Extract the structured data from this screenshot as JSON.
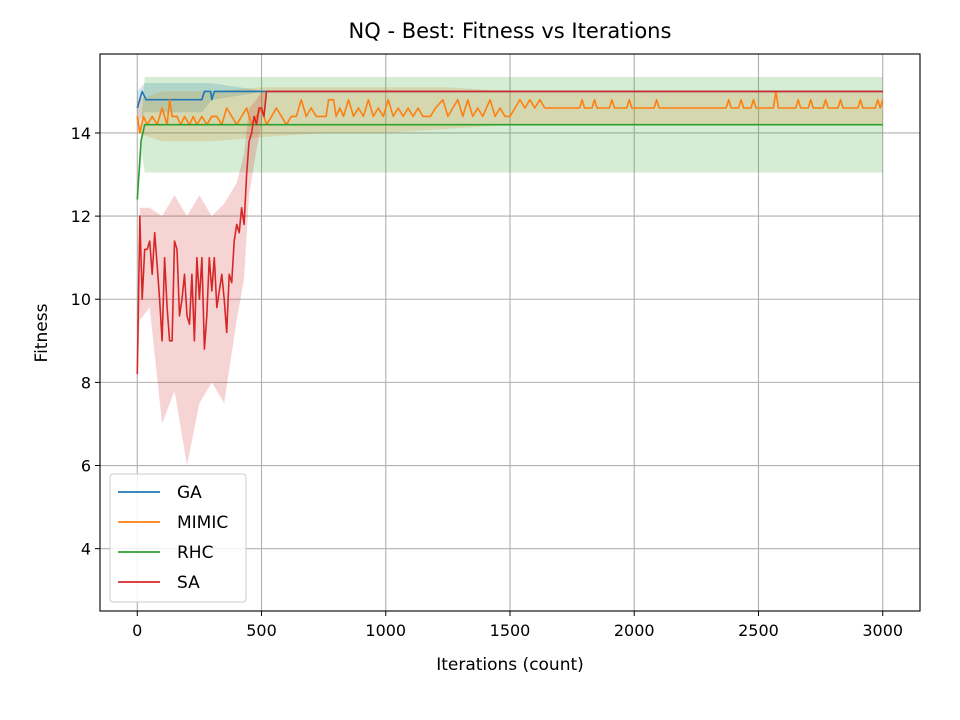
{
  "chart_data": {
    "type": "line",
    "title": "NQ - Best: Fitness vs Iterations",
    "xlabel": "Iterations (count)",
    "ylabel": "Fitness",
    "xlim": [
      -150,
      3150
    ],
    "ylim": [
      2.5,
      15.9
    ],
    "xticks": [
      0,
      500,
      1000,
      1500,
      2000,
      2500,
      3000
    ],
    "yticks": [
      4,
      6,
      8,
      10,
      12,
      14
    ],
    "grid": true,
    "legend_position": "lower-left",
    "series": [
      {
        "name": "GA",
        "color": "#1f77b4",
        "points": [
          [
            0,
            14.6
          ],
          [
            20,
            15.0
          ],
          [
            35,
            14.8
          ],
          [
            260,
            14.8
          ],
          [
            270,
            15.0
          ],
          [
            295,
            15.0
          ],
          [
            300,
            14.8
          ],
          [
            310,
            15.0
          ],
          [
            3000,
            15.0
          ]
        ],
        "band": [
          [
            0,
            14.2,
            15.0
          ],
          [
            30,
            14.5,
            15.2
          ],
          [
            260,
            14.5,
            15.2
          ],
          [
            300,
            14.8,
            15.2
          ],
          [
            520,
            15.0,
            15.0
          ],
          [
            3000,
            15.0,
            15.0
          ]
        ]
      },
      {
        "name": "MIMIC",
        "color": "#ff7f0e",
        "points": [
          [
            0,
            14.4
          ],
          [
            10,
            14.0
          ],
          [
            25,
            14.4
          ],
          [
            40,
            14.2
          ],
          [
            60,
            14.4
          ],
          [
            80,
            14.2
          ],
          [
            100,
            14.6
          ],
          [
            110,
            14.4
          ],
          [
            120,
            14.2
          ],
          [
            130,
            14.8
          ],
          [
            140,
            14.4
          ],
          [
            160,
            14.4
          ],
          [
            175,
            14.2
          ],
          [
            190,
            14.4
          ],
          [
            210,
            14.2
          ],
          [
            225,
            14.4
          ],
          [
            240,
            14.2
          ],
          [
            260,
            14.4
          ],
          [
            280,
            14.2
          ],
          [
            300,
            14.4
          ],
          [
            320,
            14.4
          ],
          [
            340,
            14.2
          ],
          [
            360,
            14.6
          ],
          [
            380,
            14.4
          ],
          [
            400,
            14.2
          ],
          [
            420,
            14.4
          ],
          [
            440,
            14.6
          ],
          [
            460,
            14.2
          ],
          [
            480,
            14.4
          ],
          [
            500,
            14.6
          ],
          [
            520,
            14.2
          ],
          [
            540,
            14.4
          ],
          [
            560,
            14.6
          ],
          [
            580,
            14.4
          ],
          [
            600,
            14.2
          ],
          [
            620,
            14.4
          ],
          [
            640,
            14.4
          ],
          [
            660,
            14.8
          ],
          [
            680,
            14.4
          ],
          [
            700,
            14.6
          ],
          [
            720,
            14.4
          ],
          [
            760,
            14.4
          ],
          [
            770,
            14.8
          ],
          [
            790,
            14.8
          ],
          [
            800,
            14.4
          ],
          [
            815,
            14.6
          ],
          [
            830,
            14.4
          ],
          [
            850,
            14.8
          ],
          [
            870,
            14.4
          ],
          [
            890,
            14.6
          ],
          [
            910,
            14.4
          ],
          [
            930,
            14.8
          ],
          [
            950,
            14.4
          ],
          [
            970,
            14.6
          ],
          [
            990,
            14.4
          ],
          [
            1010,
            14.8
          ],
          [
            1030,
            14.4
          ],
          [
            1050,
            14.6
          ],
          [
            1070,
            14.4
          ],
          [
            1090,
            14.6
          ],
          [
            1110,
            14.4
          ],
          [
            1130,
            14.6
          ],
          [
            1150,
            14.4
          ],
          [
            1180,
            14.4
          ],
          [
            1200,
            14.6
          ],
          [
            1230,
            14.8
          ],
          [
            1250,
            14.4
          ],
          [
            1270,
            14.6
          ],
          [
            1290,
            14.8
          ],
          [
            1310,
            14.4
          ],
          [
            1330,
            14.8
          ],
          [
            1350,
            14.4
          ],
          [
            1370,
            14.6
          ],
          [
            1390,
            14.4
          ],
          [
            1420,
            14.8
          ],
          [
            1440,
            14.4
          ],
          [
            1460,
            14.6
          ],
          [
            1480,
            14.4
          ],
          [
            1500,
            14.4
          ],
          [
            1520,
            14.6
          ],
          [
            1540,
            14.8
          ],
          [
            1560,
            14.6
          ],
          [
            1580,
            14.8
          ],
          [
            1600,
            14.6
          ],
          [
            1620,
            14.8
          ],
          [
            1640,
            14.6
          ],
          [
            1780,
            14.6
          ],
          [
            1790,
            14.8
          ],
          [
            1800,
            14.6
          ],
          [
            1830,
            14.6
          ],
          [
            1840,
            14.8
          ],
          [
            1850,
            14.6
          ],
          [
            1900,
            14.6
          ],
          [
            1910,
            14.8
          ],
          [
            1920,
            14.6
          ],
          [
            1970,
            14.6
          ],
          [
            1980,
            14.8
          ],
          [
            1990,
            14.6
          ],
          [
            2080,
            14.6
          ],
          [
            2090,
            14.8
          ],
          [
            2100,
            14.6
          ],
          [
            2370,
            14.6
          ],
          [
            2380,
            14.8
          ],
          [
            2390,
            14.6
          ],
          [
            2420,
            14.6
          ],
          [
            2430,
            14.8
          ],
          [
            2440,
            14.6
          ],
          [
            2470,
            14.6
          ],
          [
            2480,
            14.8
          ],
          [
            2490,
            14.6
          ],
          [
            2560,
            14.6
          ],
          [
            2570,
            15.0
          ],
          [
            2580,
            14.6
          ],
          [
            2650,
            14.6
          ],
          [
            2660,
            14.8
          ],
          [
            2670,
            14.6
          ],
          [
            2700,
            14.6
          ],
          [
            2710,
            14.8
          ],
          [
            2720,
            14.6
          ],
          [
            2760,
            14.6
          ],
          [
            2770,
            14.8
          ],
          [
            2780,
            14.6
          ],
          [
            2820,
            14.6
          ],
          [
            2830,
            14.8
          ],
          [
            2840,
            14.6
          ],
          [
            2900,
            14.6
          ],
          [
            2910,
            14.8
          ],
          [
            2920,
            14.6
          ],
          [
            2970,
            14.6
          ],
          [
            2980,
            14.8
          ],
          [
            2990,
            14.6
          ],
          [
            3000,
            14.8
          ]
        ],
        "band": [
          [
            0,
            14.0,
            14.8
          ],
          [
            100,
            13.8,
            15.0
          ],
          [
            300,
            13.8,
            15.0
          ],
          [
            500,
            13.9,
            15.1
          ],
          [
            750,
            14.0,
            15.1
          ],
          [
            1000,
            14.0,
            15.1
          ],
          [
            1250,
            14.1,
            15.1
          ],
          [
            1500,
            14.2,
            15.0
          ],
          [
            1510,
            14.2,
            15.0
          ],
          [
            3000,
            14.2,
            15.0
          ]
        ]
      },
      {
        "name": "RHC",
        "color": "#2ca02c",
        "points": [
          [
            0,
            12.4
          ],
          [
            15,
            13.8
          ],
          [
            30,
            14.2
          ],
          [
            3000,
            14.2
          ]
        ],
        "band": [
          [
            0,
            12.4,
            12.4
          ],
          [
            20,
            13.5,
            14.5
          ],
          [
            30,
            13.05,
            15.35
          ],
          [
            3000,
            13.05,
            15.35
          ]
        ]
      },
      {
        "name": "SA",
        "color": "#d62728",
        "points": [
          [
            0,
            8.2
          ],
          [
            10,
            12.0
          ],
          [
            20,
            10.0
          ],
          [
            30,
            11.2
          ],
          [
            40,
            11.2
          ],
          [
            50,
            11.4
          ],
          [
            60,
            10.6
          ],
          [
            70,
            11.6
          ],
          [
            80,
            10.8
          ],
          [
            90,
            10.0
          ],
          [
            100,
            9.0
          ],
          [
            110,
            11.0
          ],
          [
            120,
            9.8
          ],
          [
            130,
            9.0
          ],
          [
            140,
            9.0
          ],
          [
            150,
            11.4
          ],
          [
            160,
            11.2
          ],
          [
            170,
            9.6
          ],
          [
            180,
            10.0
          ],
          [
            190,
            10.6
          ],
          [
            200,
            9.6
          ],
          [
            210,
            9.4
          ],
          [
            220,
            10.6
          ],
          [
            230,
            9.0
          ],
          [
            240,
            11.0
          ],
          [
            250,
            10.0
          ],
          [
            260,
            11.0
          ],
          [
            270,
            8.8
          ],
          [
            280,
            9.6
          ],
          [
            290,
            11.0
          ],
          [
            300,
            10.2
          ],
          [
            310,
            11.0
          ],
          [
            320,
            9.8
          ],
          [
            330,
            10.2
          ],
          [
            340,
            10.6
          ],
          [
            350,
            10.0
          ],
          [
            360,
            9.2
          ],
          [
            370,
            10.6
          ],
          [
            380,
            10.4
          ],
          [
            390,
            11.4
          ],
          [
            400,
            11.8
          ],
          [
            410,
            11.6
          ],
          [
            420,
            12.2
          ],
          [
            430,
            11.8
          ],
          [
            440,
            13.0
          ],
          [
            450,
            13.8
          ],
          [
            460,
            14.0
          ],
          [
            470,
            14.4
          ],
          [
            480,
            14.2
          ],
          [
            490,
            14.6
          ],
          [
            500,
            14.6
          ],
          [
            510,
            14.4
          ],
          [
            520,
            15.0
          ],
          [
            3000,
            15.0
          ]
        ],
        "band": [
          [
            0,
            8.2,
            8.2
          ],
          [
            10,
            9.5,
            12.2
          ],
          [
            50,
            9.8,
            12.2
          ],
          [
            100,
            7.0,
            12.0
          ],
          [
            150,
            7.8,
            12.5
          ],
          [
            200,
            6.0,
            12.0
          ],
          [
            250,
            7.5,
            12.5
          ],
          [
            300,
            8.0,
            12.0
          ],
          [
            350,
            7.5,
            12.3
          ],
          [
            400,
            9.5,
            12.8
          ],
          [
            430,
            10.5,
            13.5
          ],
          [
            450,
            12.5,
            14.6
          ],
          [
            480,
            13.6,
            14.8
          ],
          [
            500,
            14.2,
            15.0
          ],
          [
            520,
            15.0,
            15.0
          ],
          [
            3000,
            15.0,
            15.0
          ]
        ]
      }
    ]
  }
}
